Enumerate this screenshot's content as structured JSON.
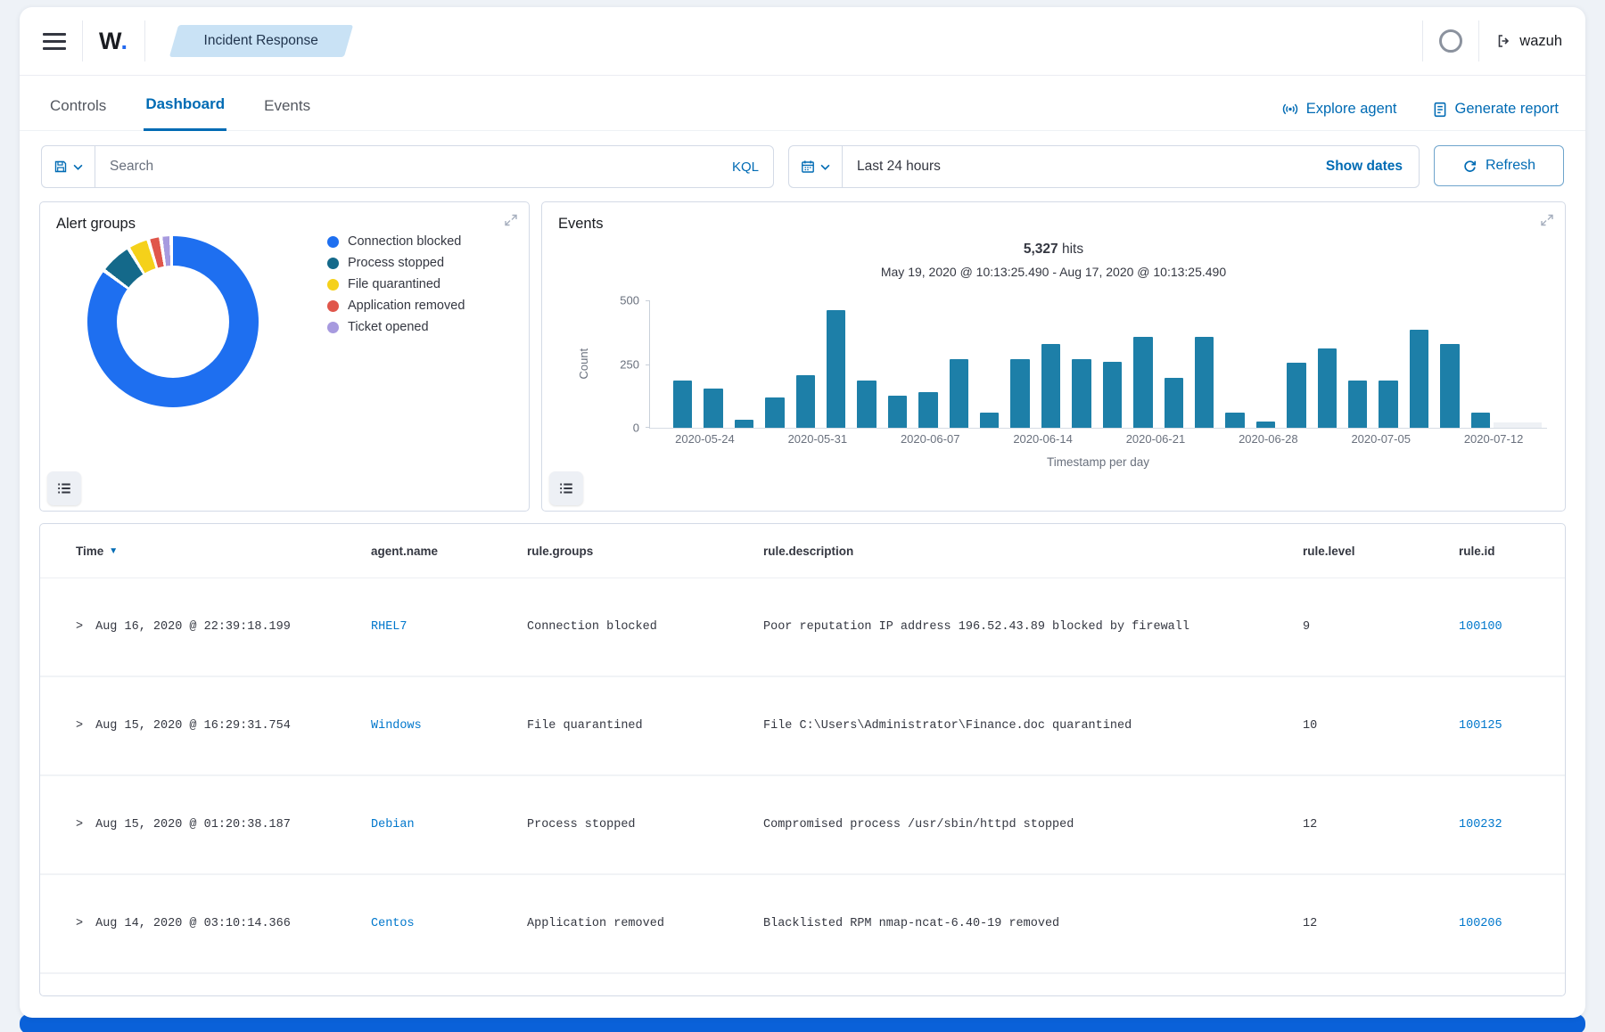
{
  "header": {
    "logo_text": "W",
    "logo_dot": ".",
    "breadcrumb": "Incident Response",
    "account_label": "wazuh"
  },
  "tabs": [
    {
      "label": "Controls",
      "active": false
    },
    {
      "label": "Dashboard",
      "active": true
    },
    {
      "label": "Events",
      "active": false
    }
  ],
  "actions": {
    "explore_agent": "Explore agent",
    "generate_report": "Generate report"
  },
  "search": {
    "placeholder": "Search",
    "kql_label": "KQL",
    "time_range": "Last 24 hours",
    "show_dates_label": "Show dates",
    "refresh_label": "Refresh"
  },
  "panels": {
    "alert_groups": {
      "title": "Alert groups"
    },
    "events": {
      "title": "Events",
      "hits": "5,327",
      "hits_suffix": "hits",
      "date_range": "May 19, 2020 @ 10:13:25.490 - Aug 17, 2020 @ 10:13:25.490"
    }
  },
  "chart_data": [
    {
      "type": "pie",
      "title": "Alert groups",
      "labels": [
        "Connection blocked",
        "Process stopped",
        "File quarantined",
        "Application removed",
        "Ticket opened"
      ],
      "values": [
        87,
        5.6,
        3.4,
        1.7,
        1.3
      ],
      "colors": [
        "#1E6FF0",
        "#14698A",
        "#F5D11A",
        "#E0564B",
        "#A79ADF"
      ],
      "legend_position": "right",
      "donut": true
    },
    {
      "type": "bar",
      "title": "Events",
      "ylabel": "Count",
      "xlabel": "Timestamp per day",
      "ylim": [
        0,
        500
      ],
      "ytick_labels": [
        "500",
        "250",
        "0"
      ],
      "x_tick_labels": [
        "2020-05-24",
        "2020-05-31",
        "2020-06-07",
        "2020-06-14",
        "2020-06-21",
        "2020-06-28",
        "2020-07-05",
        "2020-07-12"
      ],
      "values": [
        185,
        155,
        30,
        120,
        205,
        460,
        185,
        125,
        140,
        270,
        60,
        270,
        330,
        270,
        260,
        355,
        195,
        355,
        60,
        25,
        255,
        310,
        185,
        185,
        385,
        330,
        60
      ],
      "trailing_faint_value": 20,
      "bar_color": "#1d7fa8",
      "grid": false
    }
  ],
  "table": {
    "columns": [
      "Time",
      "agent.name",
      "rule.groups",
      "rule.description",
      "rule.level",
      "rule.id"
    ],
    "rows": [
      {
        "time": "Aug 16, 2020 @ 22:39:18.199",
        "agent": "RHEL7",
        "groups": "Connection blocked",
        "description": "Poor reputation IP address 196.52.43.89 blocked by firewall",
        "level": "9",
        "id": "100100"
      },
      {
        "time": "Aug 15, 2020 @ 16:29:31.754",
        "agent": "Windows",
        "groups": "File quarantined",
        "description": "File C:\\Users\\Administrator\\Finance.doc quarantined",
        "level": "10",
        "id": "100125"
      },
      {
        "time": "Aug 15, 2020 @ 01:20:38.187",
        "agent": "Debian",
        "groups": "Process stopped",
        "description": "Compromised process /usr/sbin/httpd stopped",
        "level": "12",
        "id": "100232"
      },
      {
        "time": "Aug 14, 2020 @ 03:10:14.366",
        "agent": "Centos",
        "groups": "Application removed",
        "description": "Blacklisted RPM nmap-ncat-6.40-19 removed",
        "level": "12",
        "id": "100206"
      }
    ]
  },
  "colors": {
    "primary_blue": "#006BB4",
    "link_blue": "#0077CC",
    "bar_teal": "#1d7fa8",
    "accent_strip": "#0a61d9",
    "badge_bg": "#c9e2f5"
  }
}
